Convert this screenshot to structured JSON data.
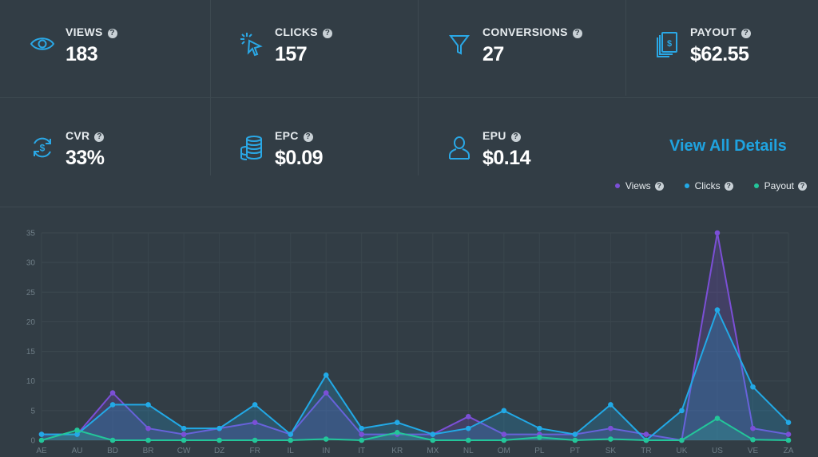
{
  "stats": {
    "views": {
      "label": "VIEWS",
      "value": "183"
    },
    "clicks": {
      "label": "CLICKS",
      "value": "157"
    },
    "conversions": {
      "label": "CONVERSIONS",
      "value": "27"
    },
    "payout": {
      "label": "PAYOUT",
      "value": "$62.55"
    },
    "cvr": {
      "label": "CVR",
      "value": "33%"
    },
    "epc": {
      "label": "EPC",
      "value": "$0.09"
    },
    "epu": {
      "label": "EPU",
      "value": "$0.14"
    }
  },
  "help_glyph": "?",
  "view_all": "View All Details",
  "colors": {
    "background": "#323d45",
    "icon": "#2aa8e6",
    "views": "#7b4fd6",
    "clicks": "#22a9e6",
    "payout": "#23c69a"
  },
  "icons": {
    "views": "eye-icon",
    "clicks": "cursor-click-icon",
    "conversions": "funnel-icon",
    "payout": "money-stack-icon",
    "cvr": "dollar-cycle-icon",
    "epc": "coin-stack-icon",
    "epu": "user-icon"
  },
  "chart_data": {
    "type": "line",
    "categories": [
      "AE",
      "AU",
      "BD",
      "BR",
      "CW",
      "DZ",
      "FR",
      "IL",
      "IN",
      "IT",
      "KR",
      "MX",
      "NL",
      "OM",
      "PL",
      "PT",
      "SK",
      "TR",
      "UK",
      "US",
      "VE",
      "ZA"
    ],
    "series": [
      {
        "name": "Views",
        "color": "#7b4fd6",
        "values": [
          1,
          1,
          8,
          2,
          1,
          2,
          3,
          1,
          8,
          1,
          1,
          1,
          4,
          1,
          1,
          1,
          2,
          1,
          0,
          35,
          2,
          1
        ]
      },
      {
        "name": "Clicks",
        "color": "#22a9e6",
        "values": [
          1,
          1,
          6,
          6,
          2,
          2,
          6,
          1,
          11,
          2,
          3,
          1,
          2,
          5,
          2,
          1,
          6,
          0,
          5,
          22,
          9,
          3
        ]
      },
      {
        "name": "Payout",
        "color": "#23c69a",
        "values": [
          0,
          1.7,
          0,
          0,
          0,
          0,
          0,
          0,
          0.2,
          0,
          1.3,
          0,
          0,
          0,
          0.5,
          0,
          0.2,
          0,
          0,
          3.7,
          0.1,
          0
        ]
      }
    ],
    "yticks": [
      0,
      5,
      10,
      15,
      20,
      25,
      30,
      35
    ],
    "ylim": [
      0,
      35
    ],
    "grid": true,
    "legend_position": "top-right"
  }
}
